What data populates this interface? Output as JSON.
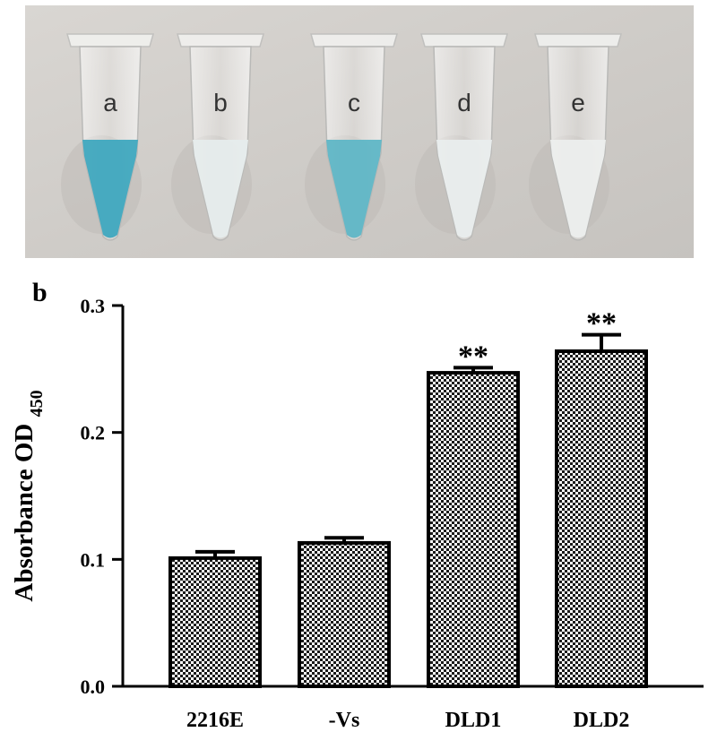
{
  "panels": {
    "a": "a",
    "b": "b"
  },
  "photo": {
    "tubes": [
      {
        "label": "a",
        "liquid": "#3fa8bf"
      },
      {
        "label": "b",
        "liquid": "#e6ecec"
      },
      {
        "label": "c",
        "liquid": "#5fb6c6"
      },
      {
        "label": "d",
        "liquid": "#e9eded"
      },
      {
        "label": "e",
        "liquid": "#eceeed"
      }
    ]
  },
  "chart_data": {
    "type": "bar",
    "categories": [
      "2216E",
      "-Vs",
      "DLD1",
      "DLD2"
    ],
    "values": [
      0.101,
      0.113,
      0.247,
      0.264
    ],
    "errors": [
      0.005,
      0.004,
      0.004,
      0.013
    ],
    "annotations": [
      "",
      "",
      "**",
      "**"
    ],
    "ylabel": "Absorbance OD",
    "ylabel_sub": "450",
    "ylim": [
      0.0,
      0.3
    ],
    "yticks": [
      "0.0",
      "0.1",
      "0.2",
      "0.3"
    ],
    "grid": false,
    "bar_pattern": "checkerboard"
  }
}
